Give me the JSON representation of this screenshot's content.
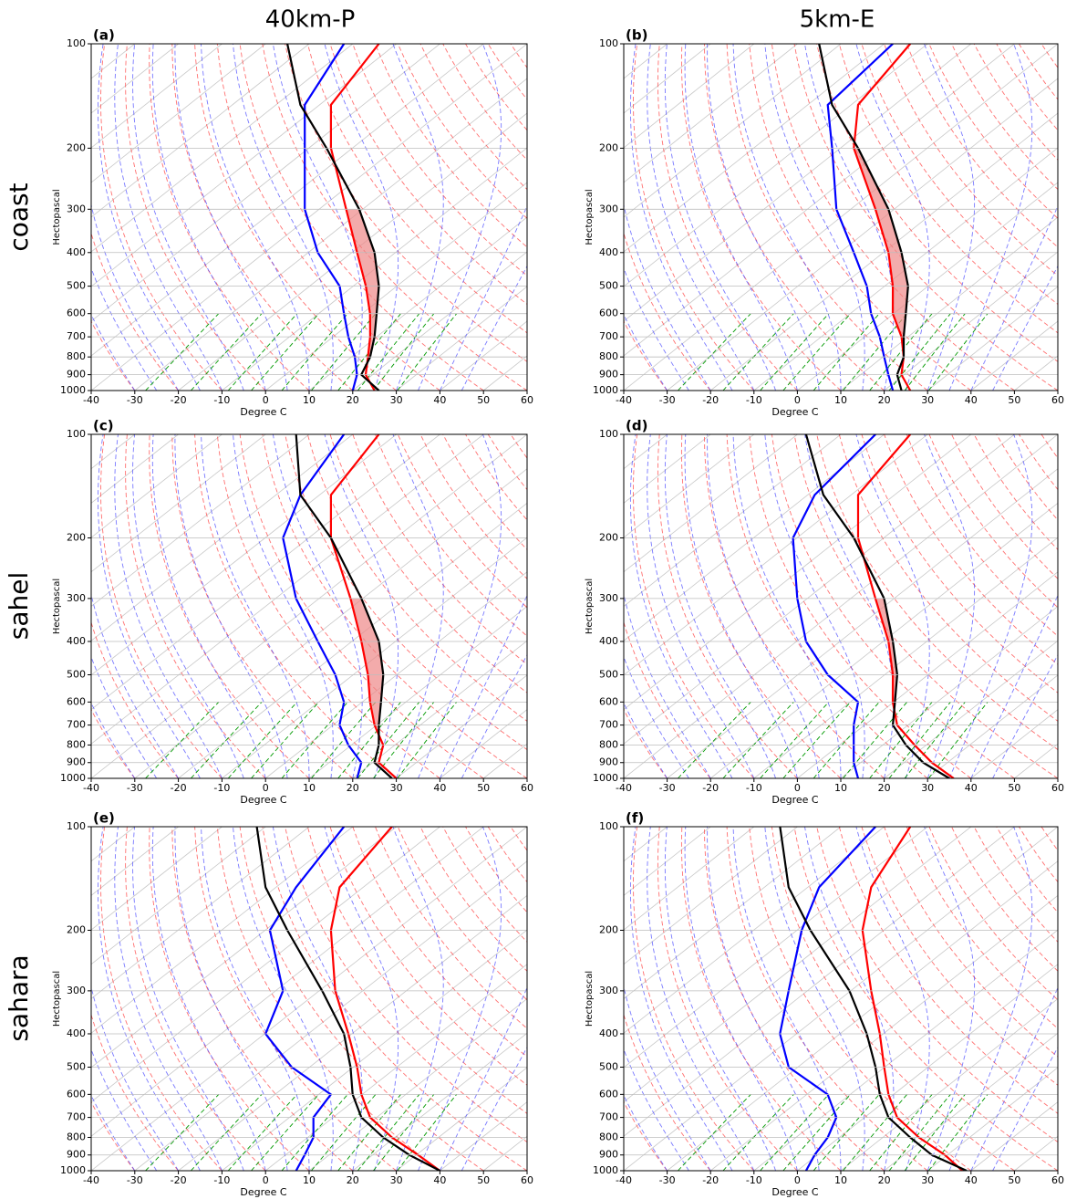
{
  "column_titles": [
    "40km-P",
    "5km-E"
  ],
  "row_titles": [
    "coast",
    "sahel",
    "sahara"
  ],
  "chart_data": [
    {
      "type": "skewt",
      "title": "(a)",
      "xlabel": "Degree C",
      "ylabel": "Hectopascal",
      "xlim": [
        -40,
        60
      ],
      "ylim": [
        1000,
        100
      ],
      "log_y": true,
      "grid": true,
      "xticks": [
        -40,
        -30,
        -20,
        -10,
        0,
        10,
        20,
        30,
        40,
        50,
        60
      ],
      "yticks": [
        1000,
        900,
        800,
        700,
        600,
        500,
        400,
        300,
        200,
        100
      ],
      "y": [
        1000,
        900,
        800,
        700,
        600,
        500,
        400,
        300,
        200,
        150,
        100
      ],
      "series": [
        {
          "color": "#ff0000",
          "values": [
            25,
            18.4,
            13.8,
            8.5,
            1.8,
            -7.1,
            -18.8,
            -33.8,
            -54.9,
            -67.4,
            -74
          ]
        },
        {
          "color": "#0000ff",
          "values": [
            20,
            16.4,
            10.8,
            3.5,
            -4.2,
            -13.1,
            -27.8,
            -43.3,
            -60.9,
            -73.4,
            -82
          ]
        },
        {
          "color": "#000000",
          "values": [
            26,
            17.4,
            14.3,
            9.5,
            3.3,
            -4.1,
            -14.8,
            -30.8,
            -55.9,
            -74.4,
            -95
          ]
        }
      ]
    },
    {
      "type": "skewt",
      "title": "(b)",
      "xlabel": "Degree C",
      "ylabel": "Hectopascal",
      "xlim": [
        -40,
        60
      ],
      "ylim": [
        1000,
        100
      ],
      "log_y": true,
      "grid": true,
      "xticks": [
        -40,
        -30,
        -20,
        -10,
        0,
        10,
        20,
        30,
        40,
        50,
        60
      ],
      "yticks": [
        1000,
        900,
        800,
        700,
        600,
        500,
        400,
        300,
        200,
        100
      ],
      "y": [
        1000,
        900,
        800,
        700,
        600,
        500,
        400,
        300,
        200,
        150,
        100
      ],
      "series": [
        {
          "color": "#ff0000",
          "values": [
            26,
            19.4,
            14.8,
            8.5,
            -0.2,
            -8.1,
            -18.8,
            -34.3,
            -56.9,
            -68.4,
            -74
          ]
        },
        {
          "color": "#0000ff",
          "values": [
            22,
            16.4,
            10.3,
            3.5,
            -5.2,
            -14.1,
            -26.8,
            -43.3,
            -61.9,
            -75.4,
            -78
          ]
        },
        {
          "color": "#000000",
          "values": [
            24,
            18.4,
            14.8,
            9,
            2.8,
            -4.6,
            -15.8,
            -31.3,
            -55.9,
            -74.4,
            -95
          ]
        }
      ]
    },
    {
      "type": "skewt",
      "title": "(c)",
      "xlabel": "Degree C",
      "ylabel": "Hectopascal",
      "xlim": [
        -40,
        60
      ],
      "ylim": [
        1000,
        100
      ],
      "log_y": true,
      "grid": true,
      "xticks": [
        -40,
        -30,
        -20,
        -10,
        0,
        10,
        20,
        30,
        40,
        50,
        60
      ],
      "yticks": [
        1000,
        900,
        800,
        700,
        600,
        500,
        400,
        300,
        200,
        100
      ],
      "y": [
        1000,
        900,
        800,
        700,
        600,
        500,
        400,
        300,
        200,
        150,
        100
      ],
      "series": [
        {
          "color": "#ff0000",
          "values": [
            30,
            21.4,
            17.3,
            9.5,
            1.8,
            -6.6,
            -17.8,
            -32.8,
            -54.9,
            -67.4,
            -74
          ]
        },
        {
          "color": "#0000ff",
          "values": [
            21,
            17.4,
            9.3,
            1.5,
            -4.2,
            -14.1,
            -27.8,
            -45.3,
            -65.9,
            -74.4,
            -82
          ]
        },
        {
          "color": "#000000",
          "values": [
            29,
            20.4,
            16.3,
            10.5,
            4.3,
            -3.1,
            -13.8,
            -30.3,
            -54.9,
            -74.4,
            -93
          ]
        }
      ]
    },
    {
      "type": "skewt",
      "title": "(d)",
      "xlabel": "Degree C",
      "ylabel": "Hectopascal",
      "xlim": [
        -40,
        60
      ],
      "ylim": [
        1000,
        100
      ],
      "log_y": true,
      "grid": true,
      "xticks": [
        -40,
        -30,
        -20,
        -10,
        0,
        10,
        20,
        30,
        40,
        50,
        60
      ],
      "yticks": [
        1000,
        900,
        800,
        700,
        600,
        500,
        400,
        300,
        200,
        100
      ],
      "y": [
        1000,
        900,
        800,
        700,
        600,
        500,
        400,
        300,
        200,
        150,
        100
      ],
      "series": [
        {
          "color": "#ff0000",
          "values": [
            36,
            26.4,
            17.3,
            7.5,
            -0.2,
            -8.1,
            -18.8,
            -34.3,
            -55.9,
            -68.4,
            -74
          ]
        },
        {
          "color": "#0000ff",
          "values": [
            14,
            8.4,
            3.3,
            -2.5,
            -8.2,
            -23.1,
            -37.8,
            -52.3,
            -70.9,
            -78.4,
            -82
          ]
        },
        {
          "color": "#000000",
          "values": [
            35,
            24.4,
            15.3,
            6.5,
            0.3,
            -7.1,
            -17.8,
            -32.3,
            -56.9,
            -76.4,
            -98
          ]
        }
      ]
    },
    {
      "type": "skewt",
      "title": "(e)",
      "xlabel": "Degree C",
      "ylabel": "Hectopascal",
      "xlim": [
        -40,
        60
      ],
      "ylim": [
        1000,
        100
      ],
      "log_y": true,
      "grid": true,
      "xticks": [
        -40,
        -30,
        -20,
        -10,
        0,
        10,
        20,
        30,
        40,
        50,
        60
      ],
      "yticks": [
        1000,
        900,
        800,
        700,
        600,
        500,
        400,
        300,
        200,
        100
      ],
      "y": [
        1000,
        900,
        800,
        700,
        600,
        500,
        400,
        300,
        200,
        150,
        100
      ],
      "series": [
        {
          "color": "#ff0000",
          "values": [
            40,
            30.4,
            19.3,
            8.5,
            -0.2,
            -9.1,
            -20.8,
            -36.3,
            -54.9,
            -65.4,
            -71
          ]
        },
        {
          "color": "#0000ff",
          "values": [
            7,
            4.4,
            1.3,
            -4.5,
            -7.2,
            -24.1,
            -39.8,
            -48.3,
            -68.9,
            -75.4,
            -82
          ]
        },
        {
          "color": "#000000",
          "values": [
            40,
            28.4,
            17.3,
            6.5,
            -2.2,
            -10.6,
            -21.8,
            -39.3,
            -64.9,
            -82.4,
            -102
          ]
        }
      ]
    },
    {
      "type": "skewt",
      "title": "(f)",
      "xlabel": "Degree C",
      "ylabel": "Hectopascal",
      "xlim": [
        -40,
        60
      ],
      "ylim": [
        1000,
        100
      ],
      "log_y": true,
      "grid": true,
      "xticks": [
        -40,
        -30,
        -20,
        -10,
        0,
        10,
        20,
        30,
        40,
        50,
        60
      ],
      "yticks": [
        1000,
        900,
        800,
        700,
        600,
        500,
        400,
        300,
        200,
        100
      ],
      "y": [
        1000,
        900,
        800,
        700,
        600,
        500,
        400,
        300,
        200,
        150,
        100
      ],
      "series": [
        {
          "color": "#ff0000",
          "values": [
            38,
            29.4,
            18.3,
            7.5,
            -1.2,
            -10.1,
            -20.8,
            -35.3,
            -54.9,
            -65.4,
            -74
          ]
        },
        {
          "color": "#0000ff",
          "values": [
            2,
            -0.6,
            -2.7,
            -6.5,
            -15.2,
            -32.1,
            -43.8,
            -54.3,
            -68.9,
            -77.4,
            -82
          ]
        },
        {
          "color": "#000000",
          "values": [
            39,
            26.4,
            16.3,
            5.5,
            -3.2,
            -12.1,
            -23.8,
            -40.3,
            -66.9,
            -84.4,
            -104
          ]
        }
      ]
    }
  ]
}
